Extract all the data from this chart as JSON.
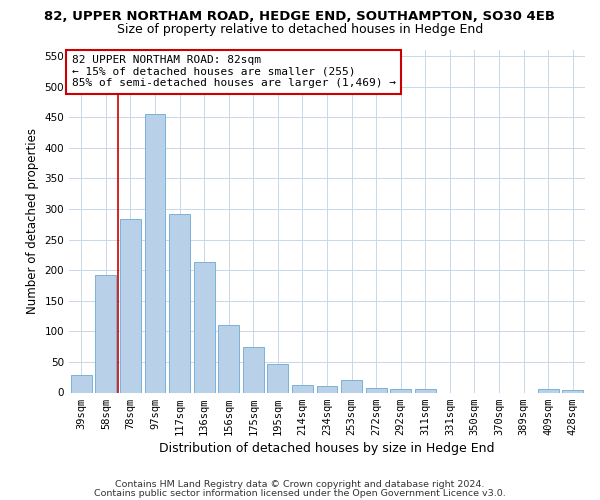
{
  "title1": "82, UPPER NORTHAM ROAD, HEDGE END, SOUTHAMPTON, SO30 4EB",
  "title2": "Size of property relative to detached houses in Hedge End",
  "xlabel": "Distribution of detached houses by size in Hedge End",
  "ylabel": "Number of detached properties",
  "categories": [
    "39sqm",
    "58sqm",
    "78sqm",
    "97sqm",
    "117sqm",
    "136sqm",
    "156sqm",
    "175sqm",
    "195sqm",
    "214sqm",
    "234sqm",
    "253sqm",
    "272sqm",
    "292sqm",
    "311sqm",
    "331sqm",
    "350sqm",
    "370sqm",
    "389sqm",
    "409sqm",
    "428sqm"
  ],
  "values": [
    28,
    192,
    284,
    456,
    292,
    213,
    110,
    74,
    46,
    12,
    11,
    20,
    8,
    6,
    5,
    0,
    0,
    0,
    0,
    5,
    4
  ],
  "bar_color": "#b8d0e8",
  "bar_edge_color": "#6aaad4",
  "vline_color": "#cc0000",
  "vline_x_index": 2,
  "annotation_text": "82 UPPER NORTHAM ROAD: 82sqm\n← 15% of detached houses are smaller (255)\n85% of semi-detached houses are larger (1,469) →",
  "annotation_box_color": "#ffffff",
  "annotation_box_edge_color": "#cc0000",
  "ylim": [
    0,
    560
  ],
  "yticks": [
    0,
    50,
    100,
    150,
    200,
    250,
    300,
    350,
    400,
    450,
    500,
    550
  ],
  "footer1": "Contains HM Land Registry data © Crown copyright and database right 2024.",
  "footer2": "Contains public sector information licensed under the Open Government Licence v3.0.",
  "title1_fontsize": 9.5,
  "title2_fontsize": 9,
  "xlabel_fontsize": 9,
  "ylabel_fontsize": 8.5,
  "tick_fontsize": 7.5,
  "footer_fontsize": 6.8,
  "annotation_fontsize": 8,
  "background_color": "#ffffff",
  "grid_color": "#c8d8ea"
}
